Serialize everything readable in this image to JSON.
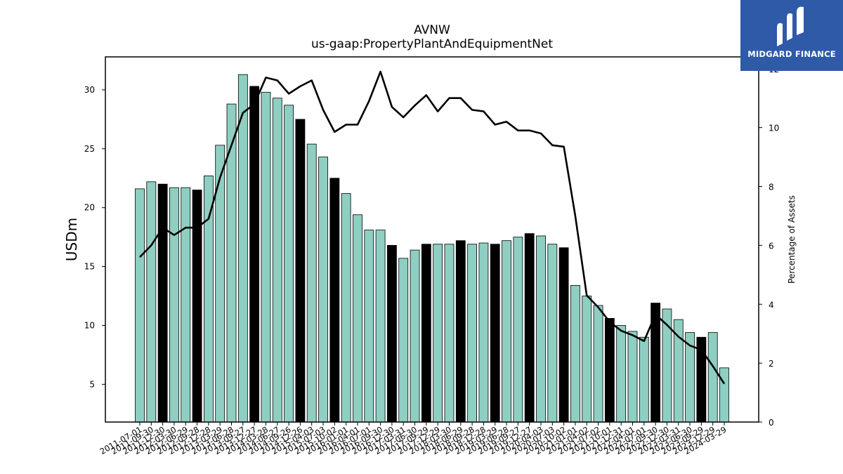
{
  "chart_data": {
    "type": "bar",
    "title": "AVNW",
    "subtitle": "us-gaap:PropertyPlantAndEquipmentNet",
    "ylabel": "USDm",
    "y2label": "Percentage of Assets",
    "ylim": [
      1.8,
      32.8
    ],
    "y2lim": [
      0,
      12.4
    ],
    "yticks": [
      5,
      10,
      15,
      20,
      25,
      30
    ],
    "y2ticks": [
      0,
      2,
      4,
      6,
      8,
      10,
      12
    ],
    "categories": [
      "2011-07-01",
      "2011-09-30",
      "2011-12-30",
      "2012-03-30",
      "2012-06-29",
      "2012-09-28",
      "2012-12-28",
      "2013-03-29",
      "2013-06-28",
      "2013-09-27",
      "2013-12-27",
      "2014-03-28",
      "2014-06-27",
      "2014-09-26",
      "2014-12-26",
      "2015-04-03",
      "2015-07-03",
      "2015-10-02",
      "2016-01-01",
      "2016-04-01",
      "2016-07-01",
      "2016-09-30",
      "2016-12-30",
      "2017-03-31",
      "2017-06-30",
      "2017-09-29",
      "2017-12-29",
      "2018-03-30",
      "2018-06-29",
      "2018-09-28",
      "2018-12-28",
      "2019-03-29",
      "2019-06-28",
      "2019-09-27",
      "2019-12-27",
      "2020-04-03",
      "2020-07-03",
      "2020-10-02",
      "2021-01-01",
      "2021-04-02",
      "2021-07-02",
      "2021-10-01",
      "2021-12-31",
      "2022-04-01",
      "2022-07-01",
      "2022-09-30",
      "2022-12-30",
      "2023-03-31",
      "2023-06-30",
      "2023-09-29",
      "2023-12-29",
      "2024-03-29"
    ],
    "series": [
      {
        "name": "",
        "type": "bar",
        "values": [
          21.6,
          22.2,
          22.0,
          21.7,
          21.7,
          21.5,
          22.7,
          25.3,
          28.8,
          31.3,
          30.3,
          29.8,
          29.3,
          28.7,
          27.5,
          25.4,
          24.3,
          22.5,
          21.2,
          19.4,
          18.1,
          18.1,
          16.8,
          15.7,
          16.4,
          16.9,
          16.9,
          16.9,
          17.2,
          16.9,
          17.0,
          16.9,
          17.2,
          17.5,
          17.8,
          17.6,
          16.9,
          16.6,
          13.4,
          12.5,
          11.7,
          10.6,
          10.0,
          9.5,
          9.0,
          11.9,
          11.4,
          10.5,
          9.4,
          9.0,
          9.4,
          6.4
        ],
        "highlight_color": "#000000",
        "highlighted_categories": [
          "2011-12-30",
          "2012-09-28",
          "2013-12-27",
          "2014-12-26",
          "2015-10-02",
          "2016-12-30",
          "2017-09-29",
          "2018-06-29",
          "2019-03-29",
          "2019-12-27",
          "2020-10-02",
          "2021-10-01",
          "2022-09-30",
          "2023-09-29"
        ]
      },
      {
        "name": "",
        "type": "line",
        "axis": "y2",
        "values": [
          5.6,
          6.0,
          6.6,
          6.35,
          6.6,
          6.6,
          6.9,
          8.3,
          9.4,
          10.5,
          10.8,
          11.7,
          11.6,
          11.15,
          11.4,
          11.6,
          10.6,
          9.85,
          10.1,
          10.1,
          10.9,
          11.9,
          10.7,
          10.35,
          10.75,
          11.1,
          10.55,
          11.0,
          11.0,
          10.6,
          10.55,
          10.1,
          10.2,
          9.9,
          9.9,
          9.8,
          9.4,
          9.35,
          7.0,
          4.3,
          3.9,
          3.4,
          3.1,
          2.95,
          2.75,
          3.65,
          3.3,
          2.9,
          2.6,
          2.45,
          1.9,
          1.3
        ]
      }
    ],
    "colors": {
      "bar": "#8ecfc2",
      "bar_highlight": "#000000",
      "line": "#000000"
    },
    "grid": false,
    "legend": "none"
  },
  "logo": {
    "text": "MIDGARD FINANCE",
    "background": "#2f5aa8"
  }
}
